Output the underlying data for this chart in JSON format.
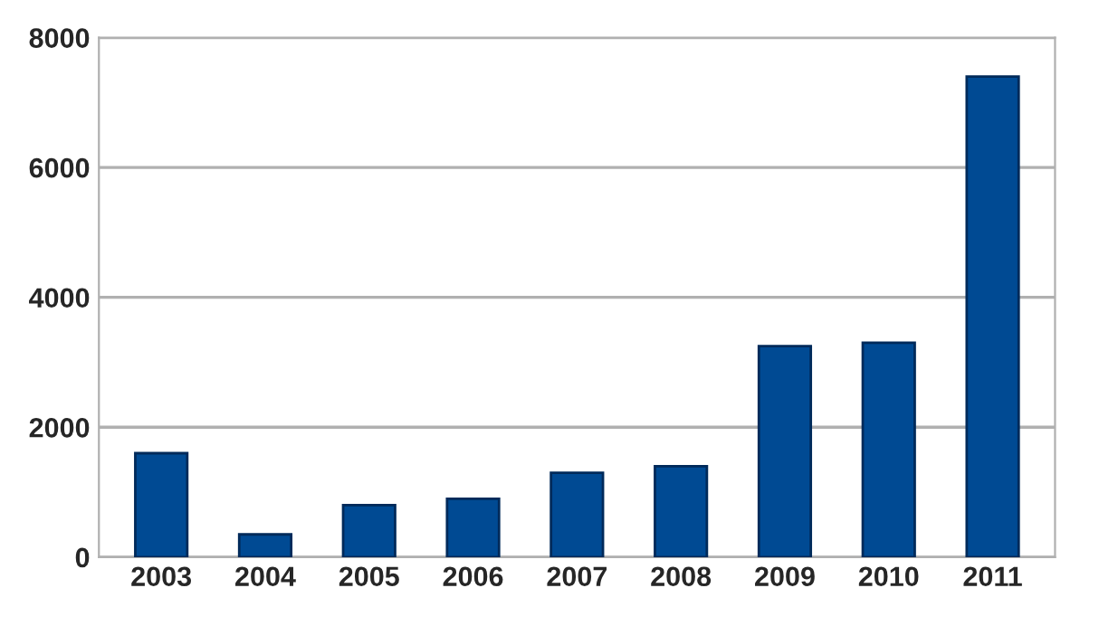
{
  "chart_data": {
    "type": "bar",
    "categories": [
      "2003",
      "2004",
      "2005",
      "2006",
      "2007",
      "2008",
      "2009",
      "2010",
      "2011"
    ],
    "values": [
      1600,
      350,
      800,
      900,
      1300,
      1400,
      3250,
      3300,
      7400
    ],
    "color": "#004a93",
    "ylim": [
      0,
      8000
    ],
    "yticks": [
      0,
      2000,
      4000,
      6000,
      8000
    ],
    "grid": "y"
  }
}
